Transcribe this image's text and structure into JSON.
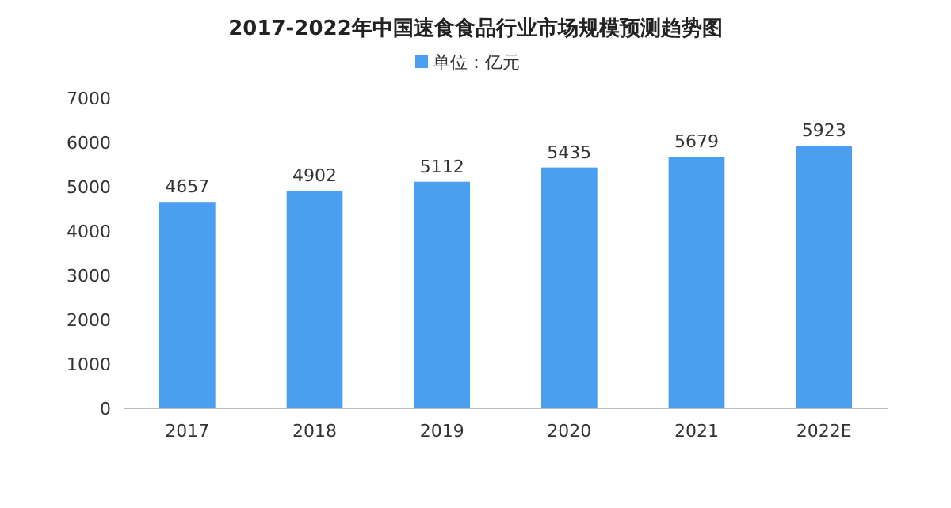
{
  "chart_data": {
    "type": "bar",
    "title": "2017-2022年中国速食食品行业市场规模预测趋势图",
    "categories": [
      "2017",
      "2018",
      "2019",
      "2020",
      "2021",
      "2022E"
    ],
    "series": [
      {
        "name": "单位：亿元",
        "color": "#4a9ff0",
        "values": [
          4657,
          4902,
          5112,
          5435,
          5679,
          5923
        ]
      }
    ],
    "ylim": [
      0,
      7000
    ],
    "yticks": [
      0,
      1000,
      2000,
      3000,
      4000,
      5000,
      6000,
      7000
    ],
    "data_labels": true,
    "legend": "top"
  }
}
